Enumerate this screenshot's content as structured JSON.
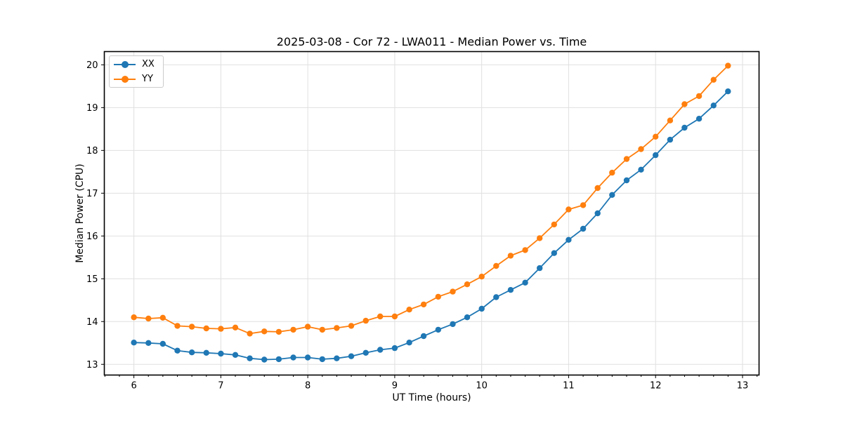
{
  "figure": {
    "background": "#ffffff",
    "plot_background": "#ffffff",
    "grid_color": "#e0e0e0",
    "spine_color": "#000000"
  },
  "chart_data": {
    "type": "line",
    "title": "2025-03-08 - Cor 72 - LWA011 - Median Power vs. Time",
    "xlabel": "UT Time (hours)",
    "ylabel": "Median Power (CPU)",
    "legend_position": "upper left",
    "grid": true,
    "xlim": [
      5.66,
      13.19
    ],
    "ylim": [
      12.75,
      20.31
    ],
    "x_ticks": [
      6,
      7,
      8,
      9,
      10,
      11,
      12,
      13
    ],
    "y_ticks": [
      13,
      14,
      15,
      16,
      17,
      18,
      19,
      20
    ],
    "x_minor_tick_step_hours": 0.16667,
    "x": [
      6.0,
      6.167,
      6.333,
      6.5,
      6.667,
      6.833,
      7.0,
      7.167,
      7.333,
      7.5,
      7.667,
      7.833,
      8.0,
      8.167,
      8.333,
      8.5,
      8.667,
      8.833,
      9.0,
      9.167,
      9.333,
      9.5,
      9.667,
      9.833,
      10.0,
      10.167,
      10.333,
      10.5,
      10.667,
      10.833,
      11.0,
      11.167,
      11.333,
      11.5,
      11.667,
      11.833,
      12.0,
      12.167,
      12.333,
      12.5,
      12.667,
      12.833
    ],
    "series": [
      {
        "name": "XX",
        "color": "#1f77b4",
        "values": [
          13.51,
          13.5,
          13.48,
          13.32,
          13.28,
          13.27,
          13.25,
          13.22,
          13.14,
          13.11,
          13.12,
          13.16,
          13.16,
          13.12,
          13.14,
          13.19,
          13.27,
          13.34,
          13.38,
          13.51,
          13.66,
          13.81,
          13.94,
          14.1,
          14.3,
          14.57,
          14.74,
          14.91,
          15.25,
          15.6,
          15.91,
          16.17,
          16.53,
          16.96,
          17.3,
          17.55,
          17.89,
          18.25,
          18.53,
          18.74,
          19.05,
          19.38
        ]
      },
      {
        "name": "YY",
        "color": "#ff7f0e",
        "values": [
          14.1,
          14.07,
          14.09,
          13.9,
          13.88,
          13.84,
          13.83,
          13.86,
          13.72,
          13.77,
          13.76,
          13.81,
          13.88,
          13.81,
          13.85,
          13.9,
          14.02,
          14.12,
          14.12,
          14.28,
          14.4,
          14.58,
          14.7,
          14.87,
          15.05,
          15.3,
          15.54,
          15.67,
          15.95,
          16.27,
          16.62,
          16.72,
          17.12,
          17.48,
          17.8,
          18.03,
          18.32,
          18.7,
          19.08,
          19.27,
          19.65,
          19.98
        ]
      }
    ]
  }
}
